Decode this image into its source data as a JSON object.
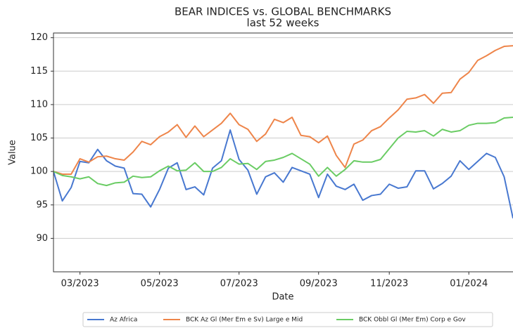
{
  "chart_data": {
    "type": "line",
    "title": "BEAR INDICES vs. GLOBAL BENCHMARKS",
    "subtitle": "last 52 weeks",
    "x_label": "Date",
    "y_label": "Value",
    "categories": [
      null,
      null,
      null,
      "03/2023",
      null,
      null,
      null,
      null,
      null,
      null,
      null,
      null,
      "05/2023",
      null,
      null,
      null,
      null,
      null,
      null,
      null,
      null,
      "07/2023",
      null,
      null,
      null,
      null,
      null,
      null,
      null,
      null,
      "09/2023",
      null,
      null,
      null,
      null,
      null,
      null,
      null,
      "11/2023",
      null,
      null,
      null,
      null,
      null,
      null,
      null,
      null,
      "01/2024",
      null,
      null,
      null,
      null,
      null
    ],
    "series": [
      {
        "name": "Az Africa",
        "color": "#4878d0",
        "values": [
          100,
          95.6,
          97.6,
          101.5,
          101.3,
          103.3,
          101.6,
          100.8,
          100.5,
          96.7,
          96.6,
          94.7,
          97.3,
          100.5,
          101.3,
          97.3,
          97.7,
          96.5,
          100.5,
          101.6,
          106.2,
          101.8,
          100.2,
          96.6,
          99.2,
          99.8,
          98.4,
          100.6,
          100.1,
          99.6,
          96.1,
          99.6,
          97.8,
          97.3,
          98.1,
          95.7,
          96.4,
          96.6,
          98.1,
          97.5,
          97.7,
          100.1,
          100.1,
          97.4,
          98.2,
          99.3,
          101.6,
          100.3,
          101.5,
          102.7,
          102.1,
          99.2,
          93.0
        ]
      },
      {
        "name": "BCK Az Gl (Mer Em e Sv) Large e Mid",
        "color": "#ee854a",
        "values": [
          100,
          99.6,
          99.6,
          101.9,
          101.4,
          102.2,
          102.3,
          101.9,
          101.7,
          102.9,
          104.5,
          104.0,
          105.2,
          105.9,
          107.0,
          105.1,
          106.8,
          105.2,
          106.2,
          107.2,
          108.7,
          107.0,
          106.3,
          104.5,
          105.6,
          107.8,
          107.3,
          108.1,
          105.4,
          105.2,
          104.3,
          105.3,
          102.4,
          100.6,
          104.1,
          104.7,
          106.1,
          106.7,
          108.0,
          109.2,
          110.8,
          111.0,
          111.5,
          110.2,
          111.7,
          111.8,
          113.8,
          114.8,
          116.6,
          117.3,
          118.1,
          118.7,
          118.8
        ]
      },
      {
        "name": "BCK Obbl Gl (Mer Em) Corp e Gov",
        "color": "#6acc64",
        "values": [
          100,
          99.4,
          99.2,
          98.9,
          99.2,
          98.2,
          97.9,
          98.3,
          98.4,
          99.3,
          99.1,
          99.2,
          100.1,
          100.8,
          100.1,
          100.2,
          101.3,
          100.0,
          100.0,
          100.6,
          101.9,
          101.1,
          101.2,
          100.3,
          101.5,
          101.7,
          102.1,
          102.7,
          101.9,
          101.1,
          99.3,
          100.6,
          99.3,
          100.3,
          101.6,
          101.4,
          101.4,
          101.8,
          103.4,
          105.0,
          106.0,
          105.9,
          106.1,
          105.3,
          106.3,
          105.9,
          106.1,
          106.9,
          107.2,
          107.2,
          107.3,
          108.0,
          108.1
        ]
      }
    ],
    "ylim": [
      85,
      120.7
    ],
    "yticks": [
      90,
      95,
      100,
      105,
      110,
      115,
      120
    ],
    "grid": true,
    "legend": "bottom"
  }
}
